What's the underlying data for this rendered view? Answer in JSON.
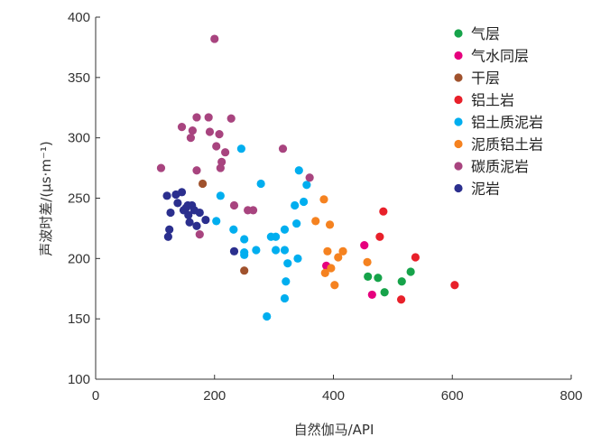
{
  "chart_data": {
    "type": "scatter",
    "xlabel": "自然伽马/API",
    "ylabel": "声波时差/(μs·m⁻¹)",
    "xlim": [
      0,
      800
    ],
    "ylim": [
      100,
      400
    ],
    "xticks": [
      "0",
      "200",
      "400",
      "600",
      "800"
    ],
    "yticks": [
      "100",
      "150",
      "200",
      "250",
      "300",
      "350",
      "400"
    ],
    "grid": false,
    "legend_position": "top-right",
    "series": [
      {
        "name": "气层",
        "color": "#16a34a",
        "points": [
          [
            458,
            185
          ],
          [
            475,
            184
          ],
          [
            486,
            172
          ],
          [
            515,
            181
          ],
          [
            530,
            189
          ]
        ]
      },
      {
        "name": "气水同层",
        "color": "#e6007e",
        "points": [
          [
            388,
            194
          ],
          [
            452,
            211
          ],
          [
            465,
            170
          ]
        ]
      },
      {
        "name": "干层",
        "color": "#a0522d",
        "points": [
          [
            180,
            262
          ],
          [
            250,
            190
          ]
        ]
      },
      {
        "name": "铝土岩",
        "color": "#e8202a",
        "points": [
          [
            478,
            218
          ],
          [
            484,
            239
          ],
          [
            538,
            201
          ],
          [
            514,
            166
          ],
          [
            604,
            178
          ]
        ]
      },
      {
        "name": "铝土质泥岩",
        "color": "#00aeef",
        "points": [
          [
            203,
            231
          ],
          [
            210,
            252
          ],
          [
            245,
            291
          ],
          [
            278,
            262
          ],
          [
            232,
            224
          ],
          [
            250,
            216
          ],
          [
            250,
            205
          ],
          [
            250,
            203
          ],
          [
            270,
            207
          ],
          [
            295,
            218
          ],
          [
            303,
            207
          ],
          [
            303,
            218
          ],
          [
            318,
            207
          ],
          [
            318,
            224
          ],
          [
            320,
            181
          ],
          [
            318,
            167
          ],
          [
            323,
            196
          ],
          [
            288,
            152
          ],
          [
            335,
            244
          ],
          [
            338,
            229
          ],
          [
            340,
            200
          ],
          [
            342,
            273
          ],
          [
            350,
            247
          ],
          [
            355,
            261
          ]
        ]
      },
      {
        "name": "泥质铝土岩",
        "color": "#f58220",
        "points": [
          [
            384,
            249
          ],
          [
            370,
            231
          ],
          [
            394,
            228
          ],
          [
            386,
            188
          ],
          [
            390,
            206
          ],
          [
            396,
            192
          ],
          [
            402,
            178
          ],
          [
            408,
            201
          ],
          [
            416,
            206
          ],
          [
            457,
            197
          ]
        ]
      },
      {
        "name": "碳质泥岩",
        "color": "#a8447f",
        "points": [
          [
            110,
            275
          ],
          [
            145,
            309
          ],
          [
            160,
            300
          ],
          [
            163,
            306
          ],
          [
            170,
            273
          ],
          [
            170,
            317
          ],
          [
            190,
            317
          ],
          [
            192,
            305
          ],
          [
            200,
            382
          ],
          [
            203,
            293
          ],
          [
            208,
            303
          ],
          [
            210,
            275
          ],
          [
            212,
            280
          ],
          [
            218,
            288
          ],
          [
            175,
            220
          ],
          [
            228,
            316
          ],
          [
            233,
            244
          ],
          [
            256,
            240
          ],
          [
            265,
            240
          ],
          [
            315,
            291
          ],
          [
            360,
            267
          ]
        ]
      },
      {
        "name": "泥岩",
        "color": "#2b2f8e",
        "points": [
          [
            120,
            252
          ],
          [
            122,
            218
          ],
          [
            124,
            224
          ],
          [
            126,
            238
          ],
          [
            135,
            253
          ],
          [
            138,
            246
          ],
          [
            145,
            255
          ],
          [
            148,
            240
          ],
          [
            152,
            242
          ],
          [
            155,
            244
          ],
          [
            156,
            236
          ],
          [
            158,
            230
          ],
          [
            162,
            244
          ],
          [
            166,
            240
          ],
          [
            170,
            227
          ],
          [
            175,
            238
          ],
          [
            185,
            232
          ],
          [
            233,
            206
          ]
        ]
      }
    ]
  }
}
